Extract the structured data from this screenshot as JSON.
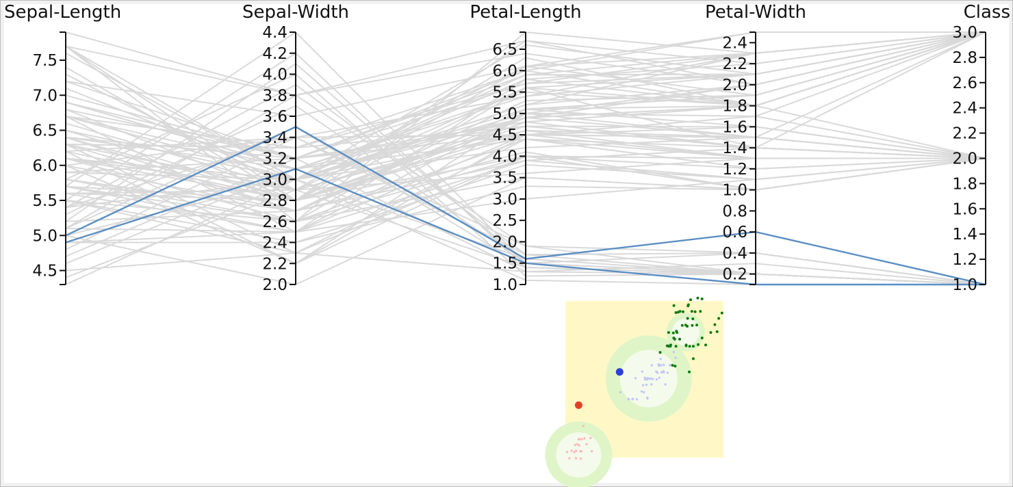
{
  "chart_data": [
    {
      "type": "parallel-coordinates",
      "dimensions": [
        {
          "name": "Sepal-Length",
          "range": [
            4.3,
            7.9
          ],
          "ticks": [
            "4.5",
            "5.0",
            "5.5",
            "6.0",
            "6.5",
            "7.0",
            "7.5"
          ]
        },
        {
          "name": "Sepal-Width",
          "range": [
            2.0,
            4.4
          ],
          "ticks": [
            "2.0",
            "2.2",
            "2.4",
            "2.6",
            "2.8",
            "3.0",
            "3.2",
            "3.4",
            "3.6",
            "3.8",
            "4.0",
            "4.2",
            "4.4"
          ]
        },
        {
          "name": "Petal-Length",
          "range": [
            1.0,
            6.9
          ],
          "ticks": [
            "1.0",
            "1.5",
            "2.0",
            "2.5",
            "3.0",
            "3.5",
            "4.0",
            "4.5",
            "5.0",
            "5.5",
            "6.0",
            "6.5"
          ]
        },
        {
          "name": "Petal-Width",
          "range": [
            0.1,
            2.5
          ],
          "ticks": [
            "0.2",
            "0.4",
            "0.6",
            "0.8",
            "1.0",
            "1.2",
            "1.4",
            "1.6",
            "1.8",
            "2.0",
            "2.2",
            "2.4"
          ]
        },
        {
          "name": "Class",
          "range": [
            1.0,
            3.0
          ],
          "ticks": [
            "1.0",
            "1.2",
            "1.4",
            "1.6",
            "1.8",
            "2.0",
            "2.2",
            "2.4",
            "2.6",
            "2.8",
            "3.0"
          ]
        }
      ],
      "highlighted_records": [
        [
          5.0,
          3.5,
          1.6,
          0.6,
          1.0
        ],
        [
          4.9,
          3.1,
          1.5,
          0.1,
          1.0
        ]
      ],
      "background_records": [
        [
          5.1,
          3.5,
          1.4,
          0.2,
          1.0
        ],
        [
          4.7,
          3.2,
          1.3,
          0.2,
          1.0
        ],
        [
          4.6,
          3.1,
          1.5,
          0.2,
          1.0
        ],
        [
          5.4,
          3.9,
          1.7,
          0.4,
          1.0
        ],
        [
          4.4,
          2.9,
          1.4,
          0.2,
          1.0
        ],
        [
          5.8,
          4.0,
          1.2,
          0.2,
          1.0
        ],
        [
          5.7,
          4.4,
          1.5,
          0.4,
          1.0
        ],
        [
          4.3,
          3.0,
          1.1,
          0.1,
          1.0
        ],
        [
          5.2,
          4.1,
          1.5,
          0.1,
          1.0
        ],
        [
          5.5,
          4.2,
          1.4,
          0.2,
          1.0
        ],
        [
          4.5,
          2.3,
          1.3,
          0.3,
          1.0
        ],
        [
          5.1,
          3.8,
          1.9,
          0.4,
          1.0
        ],
        [
          4.8,
          3.4,
          1.9,
          0.2,
          1.0
        ],
        [
          5.3,
          3.7,
          1.5,
          0.2,
          1.0
        ],
        [
          5.0,
          3.0,
          1.6,
          0.2,
          1.0
        ],
        [
          5.4,
          3.4,
          1.7,
          0.2,
          1.0
        ],
        [
          7.0,
          3.2,
          4.7,
          1.4,
          2.0
        ],
        [
          6.4,
          3.2,
          4.5,
          1.5,
          2.0
        ],
        [
          6.9,
          3.1,
          4.9,
          1.5,
          2.0
        ],
        [
          5.5,
          2.3,
          4.0,
          1.3,
          2.0
        ],
        [
          6.5,
          2.8,
          4.6,
          1.5,
          2.0
        ],
        [
          5.7,
          2.8,
          4.5,
          1.3,
          2.0
        ],
        [
          6.3,
          3.3,
          4.7,
          1.6,
          2.0
        ],
        [
          4.9,
          2.4,
          3.3,
          1.0,
          2.0
        ],
        [
          6.6,
          2.9,
          4.6,
          1.3,
          2.0
        ],
        [
          5.2,
          2.7,
          3.9,
          1.4,
          2.0
        ],
        [
          5.0,
          2.0,
          3.5,
          1.0,
          2.0
        ],
        [
          5.9,
          3.0,
          4.2,
          1.5,
          2.0
        ],
        [
          6.0,
          2.2,
          4.0,
          1.0,
          2.0
        ],
        [
          6.1,
          2.9,
          4.7,
          1.4,
          2.0
        ],
        [
          5.6,
          2.9,
          3.6,
          1.3,
          2.0
        ],
        [
          6.7,
          3.1,
          4.4,
          1.4,
          2.0
        ],
        [
          5.8,
          2.7,
          4.1,
          1.0,
          2.0
        ],
        [
          6.2,
          2.2,
          4.5,
          1.5,
          2.0
        ],
        [
          5.6,
          2.5,
          3.9,
          1.1,
          2.0
        ],
        [
          5.9,
          3.2,
          4.8,
          1.8,
          2.0
        ],
        [
          6.1,
          2.8,
          4.0,
          1.3,
          2.0
        ],
        [
          6.8,
          2.8,
          4.8,
          1.4,
          2.0
        ],
        [
          6.7,
          3.0,
          5.0,
          1.7,
          2.0
        ],
        [
          5.5,
          2.4,
          3.8,
          1.1,
          2.0
        ],
        [
          6.0,
          2.7,
          5.1,
          1.6,
          2.0
        ],
        [
          5.4,
          3.0,
          4.5,
          1.5,
          2.0
        ],
        [
          6.0,
          3.4,
          4.5,
          1.6,
          2.0
        ],
        [
          5.1,
          2.5,
          3.0,
          1.1,
          2.0
        ],
        [
          5.7,
          2.6,
          3.5,
          1.0,
          2.0
        ],
        [
          6.3,
          2.3,
          4.4,
          1.3,
          2.0
        ],
        [
          5.5,
          2.6,
          4.4,
          1.2,
          2.0
        ],
        [
          5.8,
          2.6,
          4.0,
          1.2,
          2.0
        ],
        [
          6.3,
          3.3,
          6.0,
          2.5,
          3.0
        ],
        [
          5.8,
          2.7,
          5.1,
          1.9,
          3.0
        ],
        [
          7.1,
          3.0,
          5.9,
          2.1,
          3.0
        ],
        [
          6.3,
          2.9,
          5.6,
          1.8,
          3.0
        ],
        [
          6.5,
          3.0,
          5.8,
          2.2,
          3.0
        ],
        [
          7.6,
          3.0,
          6.6,
          2.1,
          3.0
        ],
        [
          4.9,
          2.5,
          4.5,
          1.7,
          3.0
        ],
        [
          7.3,
          2.9,
          6.3,
          1.8,
          3.0
        ],
        [
          6.7,
          2.5,
          5.8,
          1.8,
          3.0
        ],
        [
          7.2,
          3.6,
          6.1,
          2.5,
          3.0
        ],
        [
          6.4,
          2.7,
          5.3,
          1.9,
          3.0
        ],
        [
          5.7,
          2.5,
          5.0,
          2.0,
          3.0
        ],
        [
          7.7,
          3.8,
          6.7,
          2.2,
          3.0
        ],
        [
          7.7,
          2.6,
          6.9,
          2.3,
          3.0
        ],
        [
          6.0,
          2.2,
          5.0,
          1.5,
          3.0
        ],
        [
          6.9,
          3.2,
          5.7,
          2.3,
          3.0
        ],
        [
          5.6,
          2.8,
          4.9,
          2.0,
          3.0
        ],
        [
          7.7,
          2.8,
          6.7,
          2.0,
          3.0
        ],
        [
          6.3,
          2.7,
          4.9,
          1.8,
          3.0
        ],
        [
          6.7,
          3.3,
          5.7,
          2.1,
          3.0
        ],
        [
          7.2,
          3.2,
          6.0,
          1.8,
          3.0
        ],
        [
          6.2,
          2.8,
          4.8,
          1.8,
          3.0
        ],
        [
          6.1,
          3.0,
          4.9,
          1.8,
          3.0
        ],
        [
          6.4,
          2.8,
          5.6,
          2.1,
          3.0
        ],
        [
          7.4,
          2.8,
          6.1,
          1.9,
          3.0
        ],
        [
          7.9,
          3.8,
          6.4,
          2.0,
          3.0
        ],
        [
          6.1,
          2.6,
          5.6,
          1.4,
          3.0
        ],
        [
          7.7,
          3.0,
          6.1,
          2.3,
          3.0
        ],
        [
          6.4,
          3.1,
          5.5,
          1.8,
          3.0
        ],
        [
          6.9,
          3.1,
          5.4,
          2.1,
          3.0
        ],
        [
          5.8,
          2.7,
          5.1,
          1.9,
          3.0
        ],
        [
          6.8,
          3.2,
          5.9,
          2.3,
          3.0
        ],
        [
          6.7,
          3.0,
          5.2,
          2.3,
          3.0
        ],
        [
          6.5,
          3.0,
          5.2,
          2.0,
          3.0
        ],
        [
          6.2,
          3.4,
          5.4,
          2.3,
          3.0
        ],
        [
          5.9,
          3.0,
          5.1,
          1.8,
          3.0
        ]
      ],
      "colors": {
        "background_line": "#d9d9d9",
        "highlight_line": "#5b8ec3",
        "axis": "#111111"
      }
    },
    {
      "type": "scatter",
      "description_colors": {
        "panel": "#fff8c6",
        "halo_outer": "#dff5c8",
        "halo_inner": "#f4fbec",
        "cluster_a": "#ffb8b8",
        "cluster_b": "#c3c7f5",
        "cluster_c": "#0c7a0c",
        "marker_a": "#e0402a",
        "marker_b": "#2c3fd8"
      },
      "clusters": [
        {
          "key": "a",
          "points": [
            [
              1.4,
              0.2
            ],
            [
              1.3,
              0.2
            ],
            [
              1.5,
              0.2
            ],
            [
              1.4,
              0.4
            ],
            [
              1.7,
              0.4
            ],
            [
              1.4,
              0.3
            ],
            [
              1.5,
              0.1
            ],
            [
              1.6,
              0.2
            ],
            [
              1.5,
              0.4
            ],
            [
              1.3,
              0.3
            ],
            [
              1.7,
              0.3
            ],
            [
              1.5,
              0.3
            ],
            [
              1.9,
              0.4
            ],
            [
              1.6,
              0.6
            ],
            [
              1.4,
              0.1
            ],
            [
              1.2,
              0.2
            ],
            [
              1.0,
              0.2
            ],
            [
              1.9,
              0.2
            ],
            [
              1.6,
              0.4
            ],
            [
              1.1,
              0.1
            ]
          ]
        },
        {
          "key": "b",
          "points": [
            [
              4.7,
              1.4
            ],
            [
              4.5,
              1.5
            ],
            [
              4.9,
              1.5
            ],
            [
              4.0,
              1.3
            ],
            [
              4.6,
              1.5
            ],
            [
              4.5,
              1.3
            ],
            [
              3.3,
              1.0
            ],
            [
              3.9,
              1.4
            ],
            [
              3.5,
              1.0
            ],
            [
              4.2,
              1.5
            ],
            [
              4.0,
              1.0
            ],
            [
              4.7,
              1.4
            ],
            [
              3.6,
              1.3
            ],
            [
              4.4,
              1.4
            ],
            [
              4.1,
              1.0
            ],
            [
              4.5,
              1.5
            ],
            [
              3.9,
              1.1
            ],
            [
              4.8,
              1.8
            ],
            [
              4.0,
              1.3
            ],
            [
              4.9,
              1.5
            ],
            [
              4.7,
              1.2
            ],
            [
              4.3,
              1.3
            ],
            [
              4.4,
              1.4
            ],
            [
              4.8,
              1.4
            ],
            [
              5.0,
              1.7
            ],
            [
              4.5,
              1.5
            ],
            [
              3.5,
              1.0
            ],
            [
              3.8,
              1.1
            ],
            [
              3.7,
              1.0
            ],
            [
              3.9,
              1.2
            ],
            [
              5.1,
              1.6
            ],
            [
              4.5,
              1.6
            ],
            [
              4.7,
              1.5
            ],
            [
              4.4,
              1.3
            ],
            [
              4.1,
              1.3
            ],
            [
              4.0,
              1.3
            ],
            [
              4.6,
              1.4
            ],
            [
              4.0,
              1.2
            ],
            [
              3.3,
              1.0
            ],
            [
              4.2,
              1.3
            ],
            [
              4.2,
              1.2
            ],
            [
              3.0,
              1.1
            ],
            [
              4.1,
              1.3
            ]
          ]
        },
        {
          "key": "c",
          "points": [
            [
              6.0,
              2.5
            ],
            [
              5.1,
              1.9
            ],
            [
              5.9,
              2.1
            ],
            [
              5.6,
              1.8
            ],
            [
              5.8,
              2.2
            ],
            [
              6.6,
              2.1
            ],
            [
              4.5,
              1.7
            ],
            [
              6.3,
              1.8
            ],
            [
              5.8,
              1.8
            ],
            [
              6.1,
              2.5
            ],
            [
              5.1,
              2.0
            ],
            [
              5.3,
              1.9
            ],
            [
              5.5,
              2.1
            ],
            [
              5.0,
              2.0
            ],
            [
              5.1,
              2.4
            ],
            [
              5.3,
              2.3
            ],
            [
              5.5,
              1.8
            ],
            [
              6.7,
              2.2
            ],
            [
              6.9,
              2.3
            ],
            [
              5.0,
              1.5
            ],
            [
              5.7,
              2.3
            ],
            [
              4.9,
              2.0
            ],
            [
              6.7,
              2.0
            ],
            [
              4.9,
              1.8
            ],
            [
              5.7,
              2.1
            ],
            [
              6.0,
              1.8
            ],
            [
              4.8,
              1.8
            ],
            [
              4.9,
              1.8
            ],
            [
              5.6,
              2.1
            ],
            [
              5.8,
              1.6
            ],
            [
              6.1,
              1.9
            ],
            [
              6.4,
              2.0
            ],
            [
              5.6,
              2.2
            ],
            [
              5.1,
              1.5
            ],
            [
              5.6,
              1.4
            ],
            [
              6.1,
              2.3
            ],
            [
              5.6,
              2.4
            ],
            [
              5.5,
              1.8
            ],
            [
              4.8,
              1.8
            ],
            [
              5.4,
              2.1
            ],
            [
              5.6,
              2.4
            ],
            [
              5.1,
              2.3
            ],
            [
              5.9,
              2.3
            ],
            [
              5.7,
              2.5
            ],
            [
              5.2,
              2.3
            ],
            [
              5.0,
              1.9
            ],
            [
              5.2,
              2.0
            ],
            [
              5.4,
              2.3
            ],
            [
              5.1,
              1.8
            ]
          ]
        }
      ],
      "halos": [
        {
          "key": "a",
          "center": [
            1.45,
            0.15
          ]
        },
        {
          "key": "b",
          "center": [
            4.1,
            1.3
          ]
        },
        {
          "key": "c",
          "center": [
            5.5,
            2.0
          ]
        }
      ],
      "markers": [
        {
          "key": "a",
          "at": [
            1.45,
            0.9
          ]
        },
        {
          "key": "b",
          "at": [
            3.0,
            1.4
          ]
        }
      ]
    }
  ]
}
